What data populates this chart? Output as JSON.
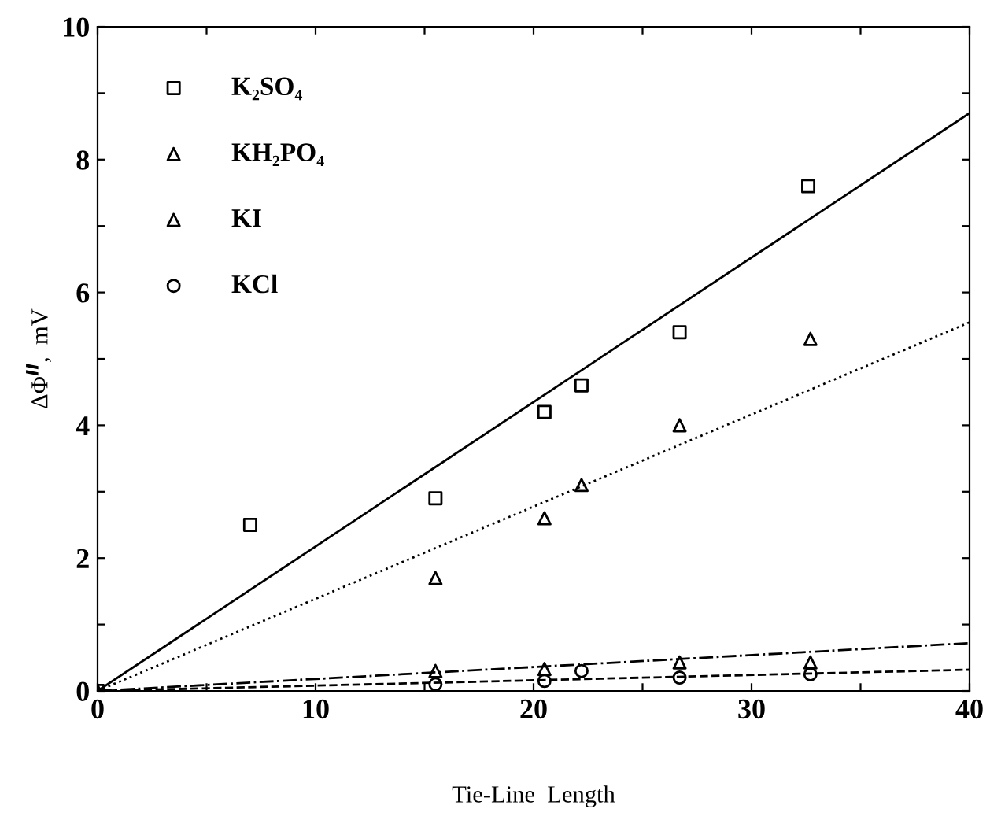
{
  "chart_data": {
    "type": "scatter",
    "xlabel": "Tie-Line  Length",
    "ylabel": "ΔΦ$^{II}$,  mV",
    "xlim": [
      0,
      40
    ],
    "ylim": [
      0,
      10
    ],
    "xticks": [
      0,
      {
        "value": 5,
        "label": null
      },
      10,
      {
        "value": 15,
        "label": null
      },
      20,
      {
        "value": 25,
        "label": null
      },
      30,
      {
        "value": 35,
        "label": null
      },
      40
    ],
    "yticks": [
      0,
      {
        "value": 1,
        "label": null
      },
      2,
      {
        "value": 3,
        "label": null
      },
      4,
      {
        "value": 5,
        "label": null
      },
      6,
      {
        "value": 7,
        "label": null
      },
      8,
      {
        "value": 9,
        "label": null
      },
      10
    ],
    "legend": "top left",
    "grid": false,
    "series": [
      {
        "name": "K₂SO₄",
        "marker": "square",
        "color": "#000000",
        "x": [
          0,
          7.0,
          15.5,
          20.5,
          22.2,
          26.7,
          32.6
        ],
        "values": [
          0,
          2.5,
          2.9,
          4.2,
          4.6,
          5.4,
          7.6
        ]
      },
      {
        "name": "KH₂PO₄",
        "marker": "triangle",
        "color": "#000000",
        "x": [
          0,
          15.5,
          20.5,
          22.2,
          26.7,
          32.7
        ],
        "values": [
          0,
          1.7,
          2.6,
          3.1,
          4.0,
          5.3
        ]
      },
      {
        "name": "KI",
        "marker": "triangle",
        "color": "#000000",
        "x": [
          15.5,
          20.5,
          26.7,
          32.7
        ],
        "values": [
          0.3,
          0.33,
          0.43,
          0.43
        ]
      },
      {
        "name": "KCl",
        "marker": "circle",
        "color": "#000000",
        "x": [
          15.5,
          20.5,
          22.2,
          26.7,
          32.7
        ],
        "values": [
          0.1,
          0.15,
          0.3,
          0.2,
          0.25
        ]
      },
      {
        "type": "line",
        "line_style": "solid",
        "color": "#000000",
        "x": [
          0,
          40
        ],
        "values": [
          0,
          8.7
        ]
      },
      {
        "type": "line",
        "line_style": "dotted",
        "color": "#000000",
        "x": [
          0,
          40
        ],
        "values": [
          0,
          5.55
        ]
      },
      {
        "type": "line",
        "line_style": "dashdot",
        "color": "#000000",
        "x": [
          0,
          40
        ],
        "values": [
          0,
          0.72
        ]
      },
      {
        "type": "line",
        "line_style": "dashed",
        "color": "#000000",
        "x": [
          0,
          40
        ],
        "values": [
          0,
          0.32
        ]
      }
    ]
  }
}
